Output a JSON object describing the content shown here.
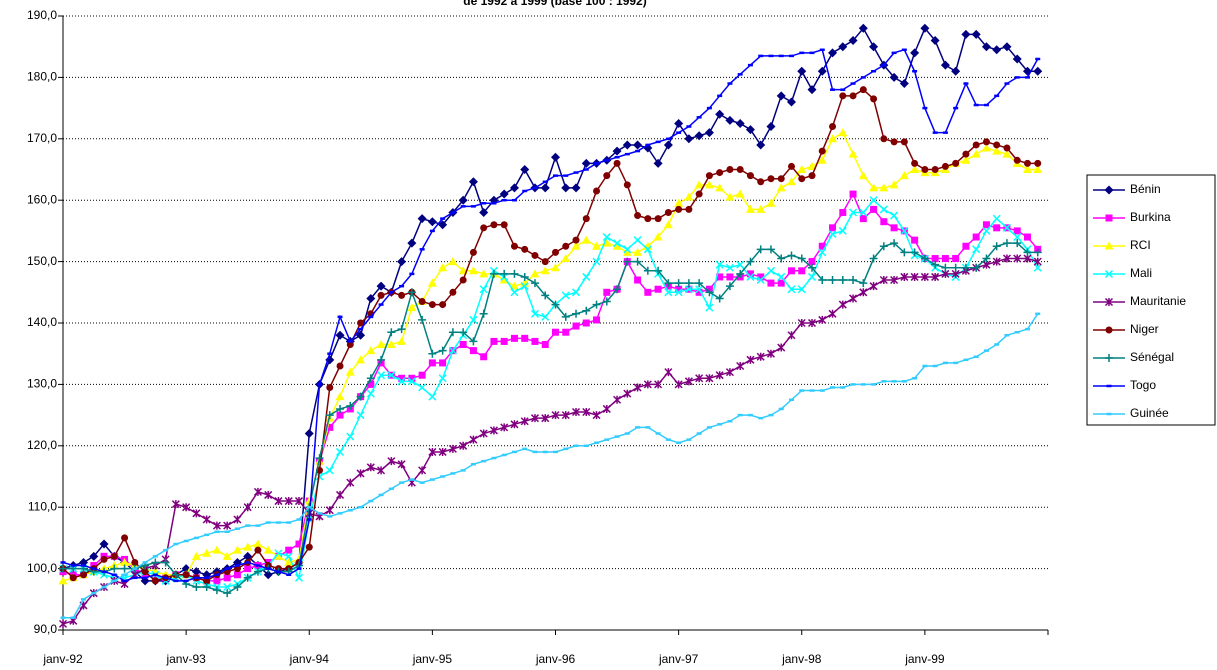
{
  "chart_data": {
    "type": "line",
    "title": "de 1992 à 1999 (base 100 : 1992)",
    "categories": [
      "janv-92",
      null,
      null,
      null,
      null,
      null,
      null,
      null,
      null,
      null,
      null,
      null,
      "janv-93",
      null,
      null,
      null,
      null,
      null,
      null,
      null,
      null,
      null,
      null,
      null,
      "janv-94",
      null,
      null,
      null,
      null,
      null,
      null,
      null,
      null,
      null,
      null,
      null,
      "janv-95",
      null,
      null,
      null,
      null,
      null,
      null,
      null,
      null,
      null,
      null,
      null,
      "janv-96",
      null,
      null,
      null,
      null,
      null,
      null,
      null,
      null,
      null,
      null,
      null,
      "janv-97",
      null,
      null,
      null,
      null,
      null,
      null,
      null,
      null,
      null,
      null,
      null,
      "janv-98",
      null,
      null,
      null,
      null,
      null,
      null,
      null,
      null,
      null,
      null,
      null,
      "janv-99",
      null,
      null,
      null,
      null,
      null,
      null,
      null,
      null,
      null,
      null,
      null
    ],
    "ylim": [
      90,
      190
    ],
    "yticks": [
      {
        "value": 90,
        "label": "90,0"
      },
      {
        "value": 100,
        "label": "100,0"
      },
      {
        "value": 110,
        "label": "110,0"
      },
      {
        "value": 120,
        "label": "120,0"
      },
      {
        "value": 130,
        "label": "130,0"
      },
      {
        "value": 140,
        "label": "140,0"
      },
      {
        "value": 150,
        "label": "150,0"
      },
      {
        "value": 160,
        "label": "160,0"
      },
      {
        "value": 170,
        "label": "170,0"
      },
      {
        "value": 180,
        "label": "180,0"
      },
      {
        "value": 190,
        "label": "190,0"
      }
    ],
    "grid": true,
    "legend": "right",
    "series": [
      {
        "name": "Bénin",
        "color": "#000080",
        "marker": "diamond",
        "values": [
          100,
          100.5,
          101,
          102,
          104,
          102,
          101,
          99.5,
          98,
          98,
          98,
          99,
          100,
          99.5,
          99,
          99.5,
          100,
          101,
          102,
          100.5,
          99,
          99.5,
          100,
          101,
          122,
          130,
          134,
          138,
          137,
          138,
          144,
          146,
          145,
          150,
          153,
          157,
          156.5,
          156,
          158,
          160,
          163,
          158,
          160,
          161,
          162,
          165,
          162,
          162,
          167,
          162,
          162,
          166,
          166,
          166.5,
          168,
          169,
          169,
          168.5,
          166,
          169,
          172.5,
          170,
          170.5,
          171,
          174,
          173,
          172.5,
          171.5,
          169,
          172,
          177,
          176,
          181,
          178,
          181,
          184,
          185,
          186,
          188,
          185,
          182,
          180,
          179,
          184,
          188,
          186,
          182,
          181,
          187,
          187,
          185,
          184.5,
          185,
          183,
          181,
          181
        ]
      },
      {
        "name": "Burkina",
        "color": "#ff00ff",
        "marker": "square",
        "values": [
          99.5,
          99,
          99,
          100.5,
          102,
          102,
          101.5,
          100,
          99,
          98.5,
          98.5,
          99,
          99,
          98.5,
          98,
          98,
          98.5,
          99,
          100,
          100.5,
          101,
          102,
          103,
          104,
          111,
          117.5,
          123,
          125,
          126,
          128,
          130,
          133.5,
          131.5,
          131,
          131,
          131.5,
          133.5,
          133.5,
          135.5,
          136.5,
          135.5,
          134.5,
          137,
          137,
          137.5,
          137.5,
          137,
          136.5,
          138.5,
          138.5,
          139.5,
          140,
          140.5,
          145,
          145.5,
          150,
          147,
          145,
          145.5,
          146,
          145.5,
          145.5,
          145,
          145.5,
          147.5,
          147.5,
          147.5,
          148,
          147.5,
          146.5,
          146.5,
          148.5,
          148.5,
          150,
          152.5,
          155.5,
          158,
          161,
          157,
          158.5,
          156.5,
          155.5,
          155,
          153.5,
          150.5,
          150.5,
          150.5,
          150.5,
          152.5,
          154,
          156,
          155.5,
          155.5,
          155,
          154,
          152
        ]
      },
      {
        "name": "RCI",
        "color": "#ffff00",
        "marker": "triangle",
        "values": [
          98,
          98.5,
          99,
          99.5,
          100,
          100.5,
          101,
          100.5,
          100,
          99.5,
          99,
          99,
          99,
          102,
          102.5,
          103,
          102,
          103,
          103.5,
          104,
          103,
          102,
          101,
          101.5,
          111,
          117.5,
          124.5,
          128,
          132,
          134,
          135.5,
          136.5,
          136.5,
          137,
          142.5,
          143.5,
          146.5,
          149,
          150,
          148.5,
          148.5,
          148,
          148,
          147,
          146,
          146.5,
          148,
          148.5,
          149,
          150.5,
          152.5,
          153.5,
          152.5,
          153,
          152.5,
          151.5,
          151.5,
          152.5,
          154,
          156,
          159.5,
          160.5,
          162.5,
          162.5,
          162,
          160.5,
          161,
          158.5,
          158.5,
          159.5,
          162,
          163,
          165,
          165.5,
          166.5,
          170,
          171,
          167.5,
          164,
          162,
          162,
          162.5,
          164,
          165,
          164.5,
          164.5,
          165,
          166,
          166.5,
          167.5,
          168.5,
          168,
          167.5,
          166,
          165,
          165
        ]
      },
      {
        "name": "Mali",
        "color": "#00ffff",
        "marker": "x",
        "values": [
          100,
          100,
          100,
          99.5,
          99,
          98.5,
          98.5,
          99,
          99.5,
          99,
          98,
          98.5,
          99,
          98,
          97.5,
          97,
          97,
          97.5,
          98.5,
          99.5,
          100.5,
          102.5,
          102,
          98.5,
          108,
          115,
          116,
          119,
          121.5,
          125,
          128.5,
          131.5,
          131.5,
          130.5,
          130.5,
          129.5,
          128,
          131,
          135.5,
          138,
          140.5,
          145.5,
          148.5,
          147.5,
          145,
          146,
          141.5,
          141,
          143,
          144.5,
          145,
          147.5,
          150,
          154,
          153,
          152,
          153.5,
          152,
          148,
          145,
          145,
          145.5,
          145.5,
          142.5,
          149.5,
          149,
          149.5,
          147.5,
          147,
          148.5,
          147.5,
          145.5,
          145.5,
          147.5,
          151.5,
          154.5,
          155,
          158,
          158,
          160,
          158.5,
          157.5,
          155,
          151,
          150.5,
          149,
          148,
          147.5,
          149,
          152,
          155,
          157,
          155.5,
          154,
          152,
          149
        ]
      },
      {
        "name": "Mauritanie",
        "color": "#800080",
        "marker": "star",
        "values": [
          91,
          91.5,
          94,
          96,
          97,
          98,
          97.5,
          99,
          100,
          100.5,
          101.5,
          110.5,
          110,
          109,
          108,
          107,
          107,
          108,
          110,
          112.5,
          112,
          111,
          111,
          111,
          109,
          108.5,
          109.5,
          112,
          114,
          115.5,
          116.5,
          116,
          117.5,
          117,
          114,
          116,
          119,
          119,
          119.5,
          120,
          121,
          122,
          122.5,
          123,
          123.5,
          124,
          124.5,
          124.5,
          125,
          125,
          125.5,
          125.5,
          125,
          126,
          127.5,
          128.5,
          129.5,
          130,
          130,
          132,
          130,
          130.5,
          131,
          131,
          131.5,
          132,
          133,
          134,
          134.5,
          135,
          136,
          138,
          140,
          140,
          140.5,
          141.5,
          143,
          144,
          145,
          146,
          147,
          147,
          147.5,
          147.5,
          147.5,
          147.5,
          148,
          148,
          148.5,
          149,
          149.5,
          150,
          150.5,
          150.5,
          150.5,
          150
        ]
      },
      {
        "name": "Niger",
        "color": "#800000",
        "marker": "circle",
        "values": [
          100,
          98.5,
          99,
          100,
          101.5,
          102,
          105,
          101,
          99.5,
          98,
          98.5,
          99,
          99,
          98.5,
          98,
          99,
          99.5,
          100,
          101,
          103,
          100.5,
          100,
          100,
          101,
          103.5,
          116,
          129.5,
          133,
          136.5,
          140,
          141.5,
          144.5,
          145,
          144.5,
          145,
          143.5,
          143,
          143,
          145,
          147,
          151.5,
          155.5,
          156,
          156,
          152.5,
          152,
          151,
          150,
          151.5,
          152.5,
          153.5,
          157,
          161.5,
          164,
          166,
          162.5,
          157.5,
          157,
          157,
          158,
          158.5,
          158.5,
          161,
          164,
          164.5,
          165,
          165,
          164,
          163,
          163.5,
          163.5,
          165.5,
          163.5,
          164,
          168,
          172,
          177,
          177,
          178,
          176.5,
          170,
          169.5,
          169.5,
          166,
          165,
          165,
          165.5,
          166,
          167.5,
          169,
          169.5,
          169,
          168.5,
          166.5,
          166,
          166
        ]
      },
      {
        "name": "Sénégal",
        "color": "#008080",
        "marker": "plus",
        "values": [
          100,
          100,
          100,
          99.5,
          99.5,
          100,
          100,
          100,
          100.5,
          101,
          101,
          99,
          97.5,
          97,
          97,
          96.5,
          96,
          97,
          98.5,
          99.5,
          100,
          99.5,
          99.5,
          100.5,
          110,
          118,
          125,
          126,
          126.5,
          128,
          131,
          134,
          138.5,
          139,
          145,
          140.5,
          135,
          135.5,
          138.5,
          138.5,
          137,
          141.5,
          148,
          148,
          148,
          147.5,
          146.5,
          144.5,
          143,
          141,
          141.5,
          142,
          143,
          143.5,
          145.5,
          150,
          150,
          148.5,
          148.5,
          146.5,
          146.5,
          146.5,
          146.5,
          145,
          144,
          146,
          148,
          150,
          152,
          152,
          150.5,
          151,
          150.5,
          149,
          147,
          147,
          147,
          147,
          146.5,
          150.5,
          152.5,
          153,
          151.5,
          151.5,
          150.5,
          149.5,
          149,
          149,
          149,
          149,
          150.5,
          152.5,
          153,
          153,
          151.5,
          151.5
        ]
      },
      {
        "name": "Togo",
        "color": "#0000ff",
        "marker": "dash",
        "values": [
          101,
          100.5,
          100.5,
          100,
          99.5,
          99,
          98,
          98.5,
          98.5,
          99,
          98.5,
          98,
          98,
          98.5,
          98.5,
          99,
          100,
          100.5,
          101,
          100.5,
          100,
          99.5,
          99,
          100,
          108,
          130,
          135,
          141,
          137,
          139,
          141,
          143,
          145,
          146,
          148,
          152,
          155,
          157,
          158,
          159,
          159,
          159.5,
          159.5,
          160,
          160,
          161.5,
          162,
          163,
          164,
          164,
          164.5,
          165,
          166,
          166.5,
          167,
          167.5,
          168,
          169,
          169.5,
          170,
          171,
          172,
          173.5,
          175,
          177,
          179,
          180.5,
          182,
          183.5,
          183.5,
          183.5,
          183.5,
          184,
          184,
          184.5,
          178,
          178,
          179,
          180,
          181,
          182,
          184,
          184.5,
          181,
          175,
          171,
          171,
          175,
          179,
          175.5,
          175.5,
          177,
          179,
          180,
          180,
          183
        ]
      },
      {
        "name": "Guinée",
        "color": "#33ccff",
        "marker": "dash",
        "values": [
          92,
          92,
          95,
          96,
          97,
          98,
          99,
          100,
          101,
          102,
          103,
          104,
          104.5,
          105,
          105.5,
          106,
          106,
          106.5,
          107,
          107,
          107.5,
          107.5,
          107.5,
          108,
          110,
          109,
          108.5,
          109,
          109.5,
          110,
          111,
          112,
          113,
          114,
          114.5,
          114,
          114.5,
          115,
          115.5,
          116,
          117,
          117.5,
          118,
          118.5,
          119,
          119.5,
          119,
          119,
          119,
          119.5,
          120,
          120,
          120.5,
          121,
          121.5,
          122,
          123,
          123,
          122,
          121,
          120.5,
          121,
          122,
          123,
          123.5,
          124,
          125,
          125,
          124.5,
          125,
          126,
          127.5,
          129,
          129,
          129,
          129.5,
          129.5,
          130,
          130,
          130,
          130.5,
          130.5,
          130.5,
          131,
          133,
          133,
          133.5,
          133.5,
          134,
          134.5,
          135.5,
          136.5,
          138,
          138.5,
          139,
          141.5
        ]
      }
    ]
  }
}
